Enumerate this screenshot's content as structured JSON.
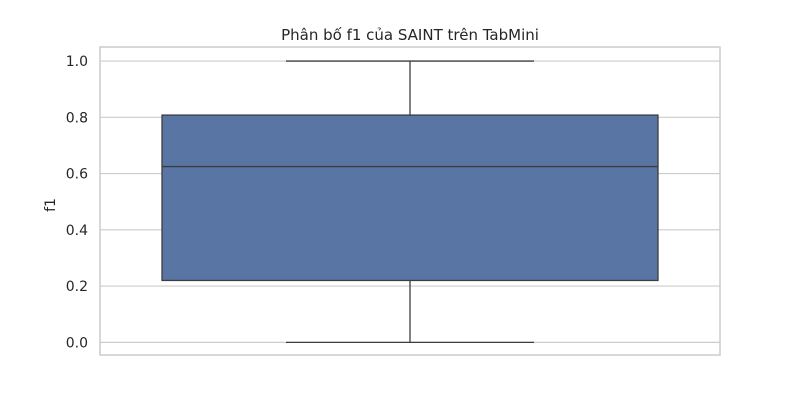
{
  "chart_data": {
    "type": "box",
    "title": "Phân bố f1 của SAINT trên TabMini",
    "xlabel": "",
    "ylabel": "f1",
    "ylim": [
      -0.045,
      1.05
    ],
    "yticks": [
      0.0,
      0.2,
      0.4,
      0.6,
      0.8,
      1.0
    ],
    "ytick_labels": [
      "0.0",
      "0.2",
      "0.4",
      "0.6",
      "0.8",
      "1.0"
    ],
    "grid": true,
    "box": {
      "min": 0.0,
      "q1": 0.22,
      "median": 0.625,
      "q3": 0.808,
      "max": 1.0
    },
    "colors": {
      "box_fill": "#5875a4",
      "line": "#3d3d3d",
      "grid": "#cccccc"
    }
  }
}
